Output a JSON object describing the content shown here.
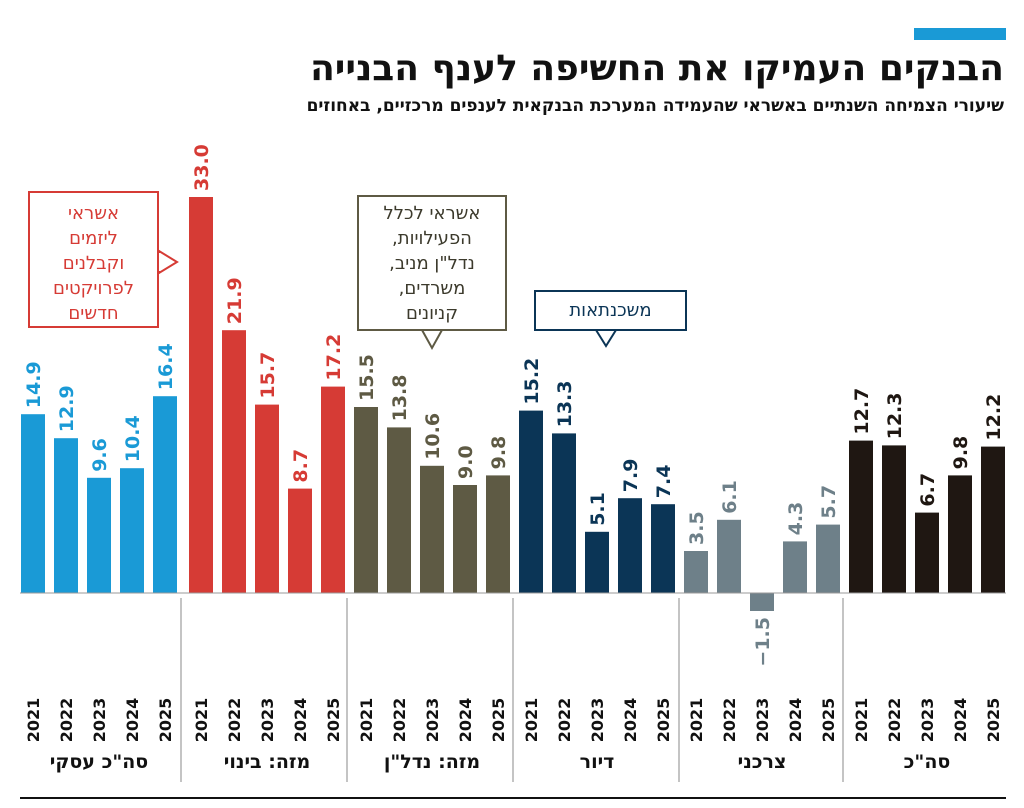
{
  "title": "הבנקים העמיקו את החשיפה לענף הבנייה",
  "subtitle": "שיעורי הצמיחה השנתיים באשראי שהעמידה המערכת הבנקאית לענפים מרכזיים, באחוזים",
  "colors": {
    "accent": "#1a9ad6",
    "business_total": "#1a9ad6",
    "construction": "#d63b35",
    "real_estate": "#5e5a44",
    "housing": "#0b3556",
    "consumer": "#6e8089",
    "total": "#1f1712"
  },
  "callouts": {
    "developers": [
      "אשראי",
      "ליזמים",
      "וקבלנים",
      "לפרויקטים",
      "חדשים"
    ],
    "all_activities": [
      "אשראי לכלל",
      "הפעילויות,",
      "נדל\"ן מניב,",
      "משרדים,",
      "קניונים"
    ],
    "mortgages": [
      "משכנתאות"
    ]
  },
  "chart_data": {
    "type": "bar",
    "title": "הבנקים העמיקו את החשיפה לענף הבנייה",
    "subtitle": "שיעורי הצמיחה השנתיים באשראי שהעמידה המערכת הבנקאית לענפים מרכזיים, באחוזים",
    "ylim": [
      -1.5,
      33
    ],
    "grid": false,
    "categories": [
      "2021",
      "2022",
      "2023",
      "2024",
      "2025"
    ],
    "series": [
      {
        "name": "סה\"כ עסקי",
        "key": "business_total",
        "values": [
          14.9,
          12.9,
          9.6,
          10.4,
          16.4
        ],
        "labels": [
          "14.9",
          "12.9",
          "9.6",
          "10.4",
          "16.4"
        ]
      },
      {
        "name": "מזה: בינוי",
        "key": "construction",
        "values": [
          33.0,
          21.9,
          15.7,
          8.7,
          17.2
        ],
        "labels": [
          "33.0",
          "21.9",
          "15.7",
          "8.7",
          "17.2"
        ]
      },
      {
        "name": "מזה: נדל\"ן",
        "key": "real_estate",
        "values": [
          15.5,
          13.8,
          10.6,
          9.0,
          9.8
        ],
        "labels": [
          "15.5",
          "13.8",
          "10.6",
          "9.0",
          "9.8"
        ]
      },
      {
        "name": "דיור",
        "key": "housing",
        "values": [
          15.2,
          13.3,
          5.1,
          7.9,
          7.4
        ],
        "labels": [
          "15.2",
          "13.3",
          "5.1",
          "7.9",
          "7.4"
        ]
      },
      {
        "name": "צרכני",
        "key": "consumer",
        "values": [
          3.5,
          6.1,
          -1.5,
          4.3,
          5.7
        ],
        "labels": [
          "3.5",
          "6.1",
          "−1.5",
          "4.3",
          "5.7"
        ]
      },
      {
        "name": "סה\"כ",
        "key": "total",
        "values": [
          12.7,
          12.3,
          6.7,
          9.8,
          12.2
        ],
        "labels": [
          "12.7",
          "12.3",
          "6.7",
          "9.8",
          "12.2"
        ]
      }
    ]
  }
}
